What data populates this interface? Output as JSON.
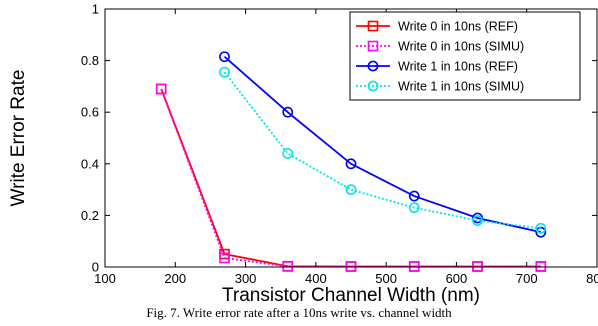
{
  "chart_data": {
    "type": "line",
    "title": "",
    "xlabel": "Transistor Channel Width (nm)",
    "ylabel": "Write Error Rate",
    "xlim": [
      100,
      800
    ],
    "ylim": [
      0,
      1
    ],
    "xticks": [
      100,
      200,
      300,
      400,
      500,
      600,
      700,
      800
    ],
    "yticks": [
      0,
      0.2,
      0.4,
      0.6,
      0.8,
      1
    ],
    "xtick_labels": [
      "100",
      "200",
      "300",
      "400",
      "500",
      "600",
      "700",
      "800"
    ],
    "ytick_labels": [
      "0",
      "0.2",
      "0.4",
      "0.6",
      "0.8",
      "1"
    ],
    "grid": false,
    "legend_position": "top-right",
    "series": [
      {
        "name": "Write 0 in 10ns (REF)",
        "color": "#ff0000",
        "line_style": "solid",
        "marker": "square",
        "marker_color": "#ff0000",
        "x": [
          180,
          270,
          360,
          450,
          540,
          630,
          720
        ],
        "y": [
          0.69,
          0.05,
          0.003,
          0.002,
          0.002,
          0.002,
          0.002
        ]
      },
      {
        "name": "Write 0 in 10ns (SIMU)",
        "color": "#ff00ff",
        "line_style": "dotted",
        "marker": "square",
        "marker_color": "#ff00ff",
        "x": [
          180,
          270,
          360,
          450,
          540,
          630,
          720
        ],
        "y": [
          0.69,
          0.035,
          0.002,
          0.002,
          0.002,
          0.002,
          0.002
        ]
      },
      {
        "name": "Write 1 in 10ns (REF)",
        "color": "#0000ff",
        "line_style": "solid",
        "marker": "circle",
        "marker_color": "#0000ff",
        "x": [
          270,
          360,
          450,
          540,
          630,
          720
        ],
        "y": [
          0.815,
          0.6,
          0.4,
          0.275,
          0.19,
          0.135
        ]
      },
      {
        "name": "Write 1 in 10ns (SIMU)",
        "color": "#00e5e5",
        "line_style": "dotted",
        "marker": "circle",
        "marker_color": "#00e5e5",
        "x": [
          270,
          360,
          450,
          540,
          630,
          720
        ],
        "y": [
          0.755,
          0.44,
          0.3,
          0.23,
          0.18,
          0.15
        ]
      }
    ]
  },
  "caption": "Fig. 7. Write error rate after a 10ns write vs. channel width"
}
